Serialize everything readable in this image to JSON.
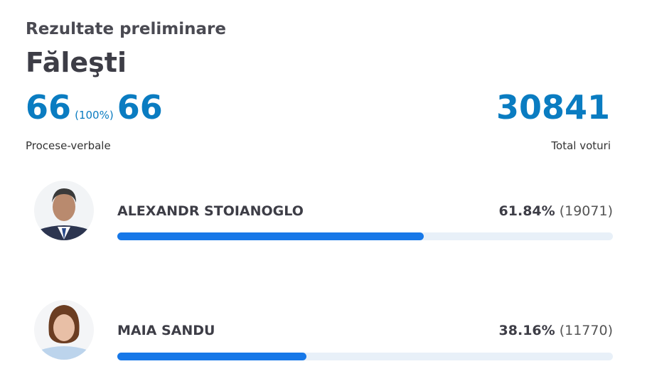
{
  "header": {
    "title": "Rezultate preliminare",
    "region": "Făleşti"
  },
  "stats": {
    "processed": 66,
    "processed_percent": "(100%)",
    "total_protocols": 66,
    "protocols_label": "Procese-verbale",
    "total_votes": 30841,
    "votes_label": "Total voturi"
  },
  "candidates": [
    {
      "name": "ALEXANDR STOIANOGLO",
      "percent": 61.84,
      "percent_label": "61.84%",
      "votes": "(19071)"
    },
    {
      "name": "MAIA SANDU",
      "percent": 38.16,
      "percent_label": "38.16%",
      "votes": "(11770)"
    }
  ]
}
